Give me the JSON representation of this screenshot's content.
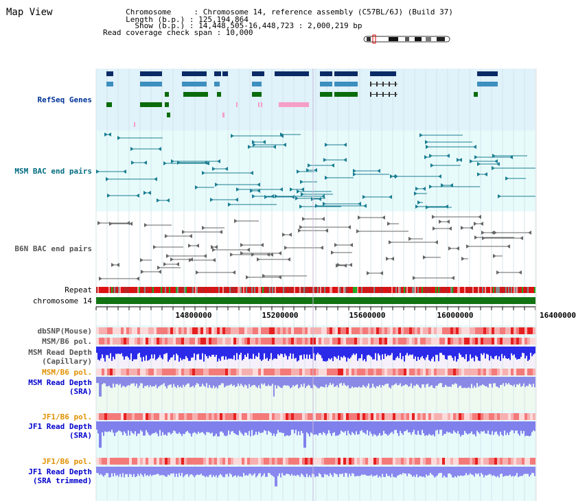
{
  "header": {
    "title": "Map View",
    "info_lines": [
      "     Chromosome     : Chromosome 14, reference assembly (C57BL/6J) (Build 37)",
      "     Length (b.p.) : 125,194,864",
      "       Show (b.p.) : 14,448,505-16,448,723 : 2,000,219 bp",
      "Read coverage check span : 10,000"
    ]
  },
  "tracks": {
    "refseq": "RefSeq Genes",
    "msm_bac": "MSM BAC end pairs",
    "b6n_bac": "B6N BAC end pairs",
    "repeat": "Repeat",
    "chromosome": "chromosome 14",
    "dbsnp": "dbSNP(Mouse)",
    "msm_b6_pol_1": "MSM/B6 pol.",
    "msm_depth_cap_1": "MSM Read Depth",
    "msm_depth_cap_2": "(Capillary)",
    "msm_b6_pol_2": "MSM/B6 pol.",
    "msm_depth_sra_1": "MSM Read Depth",
    "msm_depth_sra_2": "(SRA)",
    "jf1_b6_pol_1": "JF1/B6 pol.",
    "jf1_depth_sra_1": "JF1 Read Depth",
    "jf1_depth_sra_2": "(SRA)",
    "jf1_b6_pol_2": "JF1/B6 pol.",
    "jf1_depth_trim_1": "JF1 Read Depth",
    "jf1_depth_trim_2": "(SRA trimmed)"
  },
  "axis": {
    "ticks": [
      "14800000",
      "15200000",
      "15600000",
      "16000000",
      "16400000"
    ]
  },
  "colors": {
    "refseq_bg": "#e0f2fa",
    "bac_bg": "#e8fbfb",
    "gene_navy": "#0a2a66",
    "gene_steel": "#3d8fbf",
    "gene_green": "#0a6b0a",
    "gene_pink": "#f59ec6",
    "chrom_green": "#127312",
    "depth_blue": "#2222dd",
    "depth_light": "#8888ee",
    "pol_red": "#ee3333",
    "pol_pink": "#f7b0b0"
  }
}
